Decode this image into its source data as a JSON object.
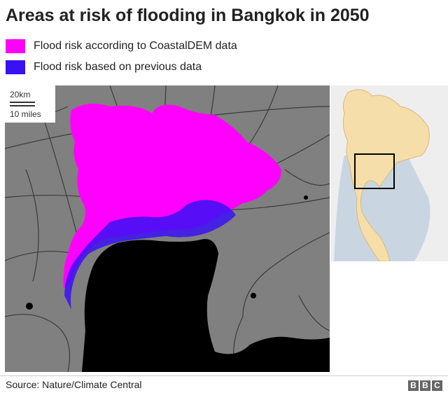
{
  "title": "Areas at risk of flooding in Bangkok in 2050",
  "legend": [
    {
      "label": "Flood risk according to CoastalDEM data",
      "color": "#ff00ff"
    },
    {
      "label": "Flood risk based on previous data",
      "color": "#3a10f5"
    }
  ],
  "scale": {
    "km_label": "20km",
    "miles_label": "10 miles"
  },
  "colors": {
    "land": "#808080",
    "sea": "#000000",
    "roads": "#3a3a3a",
    "inset_land": "#f6deaa",
    "inset_sea": "#c9d6e2",
    "inset_box": "#000000"
  },
  "source": "Source: Nature/Climate Central",
  "logo": {
    "letters": [
      "B",
      "B",
      "C"
    ]
  }
}
